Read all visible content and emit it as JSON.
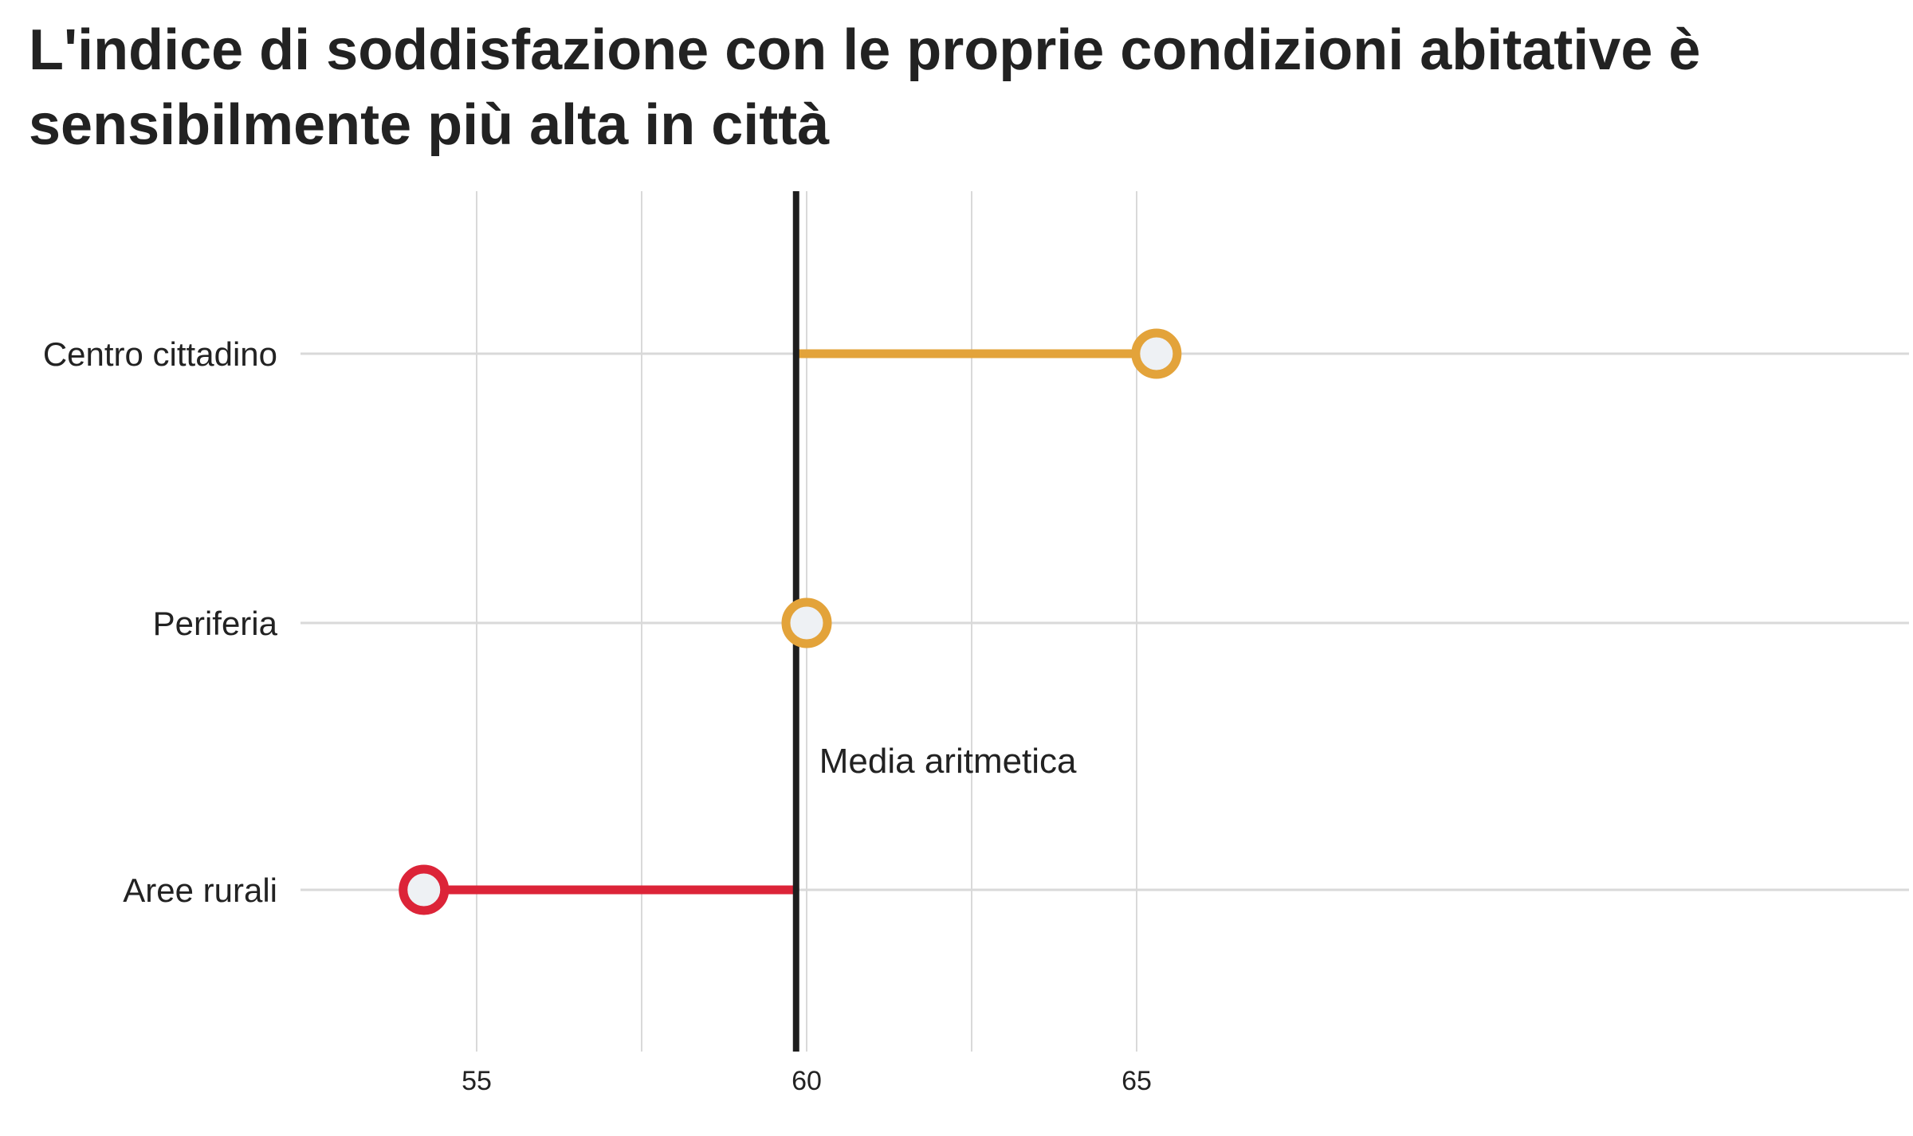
{
  "title": "L'indice di soddisfazione con le proprie condizioni abitative è sensibilmente più alta in città",
  "chart_data": {
    "type": "lollipop",
    "title": "L'indice di soddisfazione con le proprie condizioni abitative è sensibilmente più alta in città",
    "xlabel": "",
    "ylabel": "",
    "xlim": [
      53.4,
      66.0
    ],
    "ticks": [
      55,
      60,
      65
    ],
    "grid": true,
    "reference": {
      "value": 59.84,
      "label": "Media aritmetica"
    },
    "categories": [
      "Centro cittadino",
      "Periferia",
      "Aree rurali"
    ],
    "values": [
      65.3,
      60.0,
      54.2
    ],
    "colors": [
      "#E3A33A",
      "#E3A33A",
      "#DC2438"
    ],
    "marker_fill": "#EEF1F4",
    "reference_color": "#1E1E1E"
  }
}
